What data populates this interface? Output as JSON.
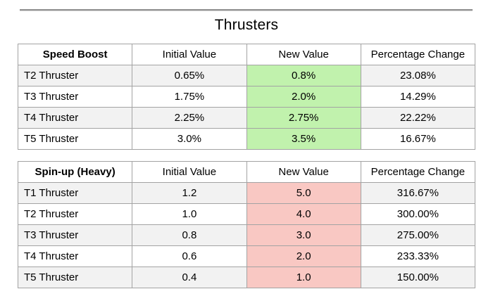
{
  "title": "Thrusters",
  "colors": {
    "speed_boost_highlight": "#c1f2ad",
    "spin_up_highlight": "#f9c8c3",
    "row_stripe": "#f2f2f2",
    "table_border": "#a3a3a3",
    "divider": "#8f8f8f"
  },
  "tables": [
    {
      "name": "speed-boost",
      "headers": [
        "Speed Boost",
        "Initial Value",
        "New Value",
        "Percentage Change"
      ],
      "highlight_column": 2,
      "highlight_color": "#c1f2ad",
      "rows": [
        [
          "T2 Thruster",
          "0.65%",
          "0.8%",
          "23.08%"
        ],
        [
          "T3 Thruster",
          "1.75%",
          "2.0%",
          "14.29%"
        ],
        [
          "T4 Thruster",
          "2.25%",
          "2.75%",
          "22.22%"
        ],
        [
          "T5 Thruster",
          "3.0%",
          "3.5%",
          "16.67%"
        ]
      ]
    },
    {
      "name": "spin-up-heavy",
      "headers": [
        "Spin-up (Heavy)",
        "Initial Value",
        "New Value",
        "Percentage Change"
      ],
      "highlight_column": 2,
      "highlight_color": "#f9c8c3",
      "rows": [
        [
          "T1 Thruster",
          "1.2",
          "5.0",
          "316.67%"
        ],
        [
          "T2 Thruster",
          "1.0",
          "4.0",
          "300.00%"
        ],
        [
          "T3 Thruster",
          "0.8",
          "3.0",
          "275.00%"
        ],
        [
          "T4 Thruster",
          "0.6",
          "2.0",
          "233.33%"
        ],
        [
          "T5 Thruster",
          "0.4",
          "1.0",
          "150.00%"
        ]
      ]
    }
  ]
}
